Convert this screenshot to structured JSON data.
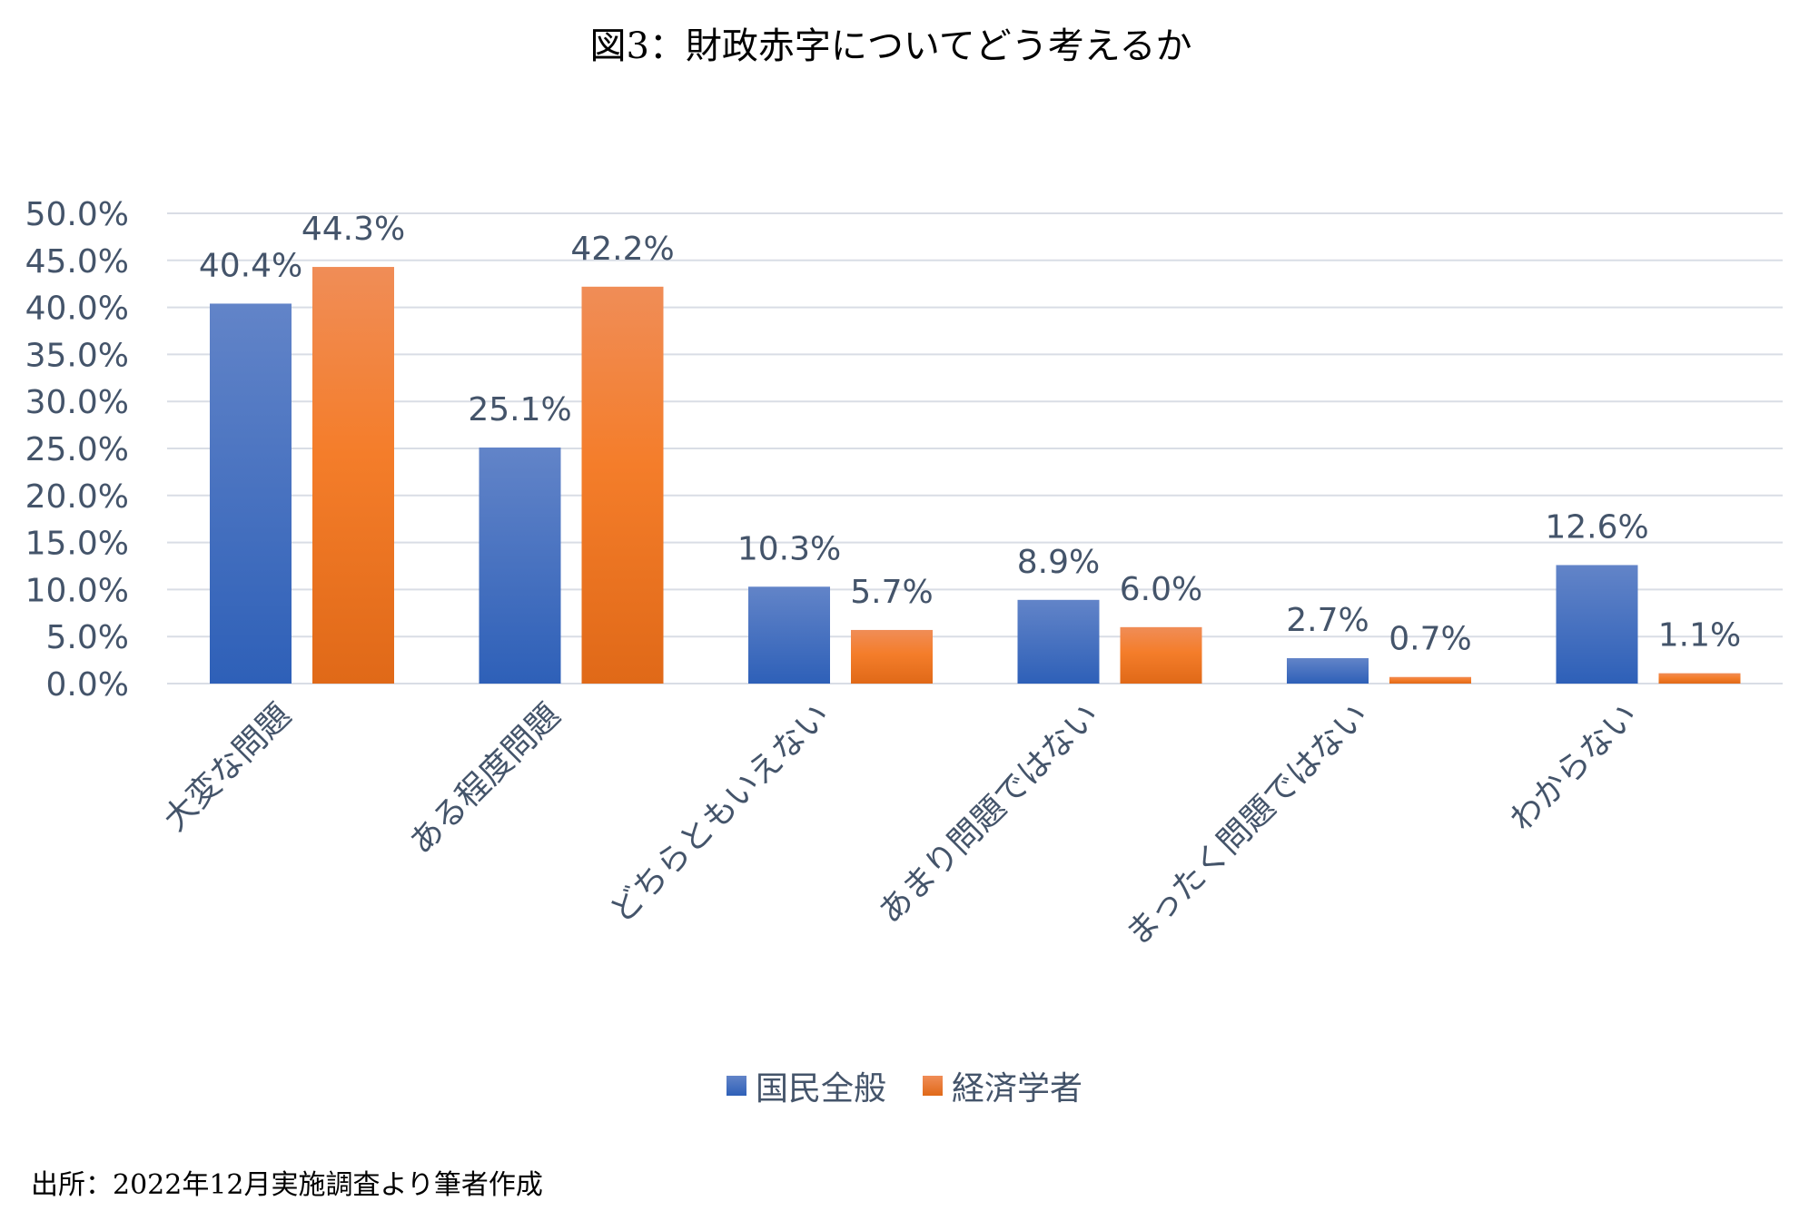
{
  "chart_data": {
    "type": "bar",
    "title": "図3：財政赤字についてどう考えるか",
    "categories": [
      "大変な問題",
      "ある程度問題",
      "どちらともいえない",
      "あまり問題ではない",
      "まったく問題ではない",
      "わからない"
    ],
    "series": [
      {
        "name": "国民全般",
        "values": [
          40.4,
          25.1,
          10.3,
          8.9,
          2.7,
          12.6
        ],
        "labels": [
          "40.4%",
          "25.1%",
          "10.3%",
          "8.9%",
          "2.7%",
          "12.6%"
        ],
        "color": "#4472c4"
      },
      {
        "name": "経済学者",
        "values": [
          44.3,
          42.2,
          5.7,
          6.0,
          0.7,
          1.1
        ],
        "labels": [
          "44.3%",
          "42.2%",
          "5.7%",
          "6.0%",
          "0.7%",
          "1.1%"
        ],
        "color": "#ed7d31"
      }
    ],
    "ylim": [
      0,
      50
    ],
    "yticks": [
      "0.0%",
      "5.0%",
      "10.0%",
      "15.0%",
      "20.0%",
      "25.0%",
      "30.0%",
      "35.0%",
      "40.0%",
      "45.0%",
      "50.0%"
    ],
    "grid": true,
    "legend": "bottom",
    "xlabel": "",
    "ylabel": ""
  },
  "source": "出所：2022年12月実施調査より筆者作成"
}
